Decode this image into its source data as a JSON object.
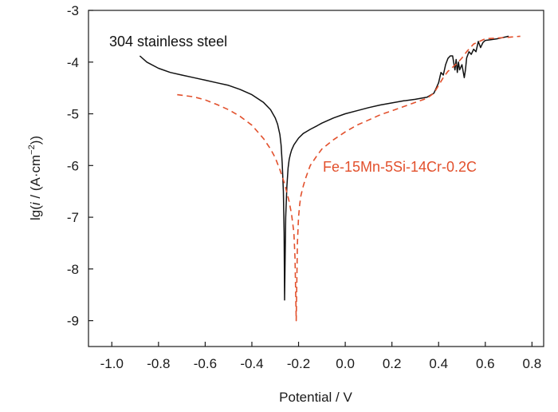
{
  "chart_data": {
    "type": "line",
    "xlabel": "Potential / V",
    "ylabel_parts": {
      "prefix": "lg(",
      "italic": "i",
      "middle": " / (A·cm",
      "superscript": "−2",
      "suffix": "))"
    },
    "xlim": [
      -1.1,
      0.85
    ],
    "ylim": [
      -9.5,
      -3.0
    ],
    "xticks": [
      -1.0,
      -0.8,
      -0.6,
      -0.4,
      -0.2,
      0.0,
      0.2,
      0.4,
      0.6,
      0.8
    ],
    "xtick_labels": [
      "-1.0",
      "-0.8",
      "-0.6",
      "-0.4",
      "-0.2",
      "0.0",
      "0.2",
      "0.4",
      "0.6",
      "0.8"
    ],
    "yticks": [
      -3,
      -4,
      -5,
      -6,
      -7,
      -8,
      -9
    ],
    "ytick_labels": [
      "-3",
      "-4",
      "-5",
      "-6",
      "-7",
      "-8",
      "-9"
    ],
    "grid": false,
    "series": [
      {
        "name": "304 stainless steel",
        "color": "#111111",
        "style": "solid",
        "x": [
          -0.88,
          -0.85,
          -0.8,
          -0.75,
          -0.7,
          -0.65,
          -0.6,
          -0.55,
          -0.5,
          -0.45,
          -0.4,
          -0.35,
          -0.32,
          -0.3,
          -0.29,
          -0.28,
          -0.275,
          -0.27,
          -0.265,
          -0.262,
          -0.26,
          -0.255,
          -0.25,
          -0.245,
          -0.24,
          -0.235,
          -0.23,
          -0.22,
          -0.2,
          -0.18,
          -0.15,
          -0.12,
          -0.1,
          -0.05,
          0.0,
          0.05,
          0.1,
          0.15,
          0.2,
          0.25,
          0.3,
          0.35,
          0.38,
          0.39,
          0.4,
          0.41,
          0.42,
          0.43,
          0.44,
          0.45,
          0.46,
          0.47,
          0.475,
          0.48,
          0.485,
          0.49,
          0.5,
          0.51,
          0.515,
          0.52,
          0.53,
          0.54,
          0.55,
          0.56,
          0.57,
          0.58,
          0.59,
          0.6,
          0.62,
          0.65,
          0.7
        ],
        "y": [
          -3.88,
          -4.0,
          -4.12,
          -4.2,
          -4.25,
          -4.3,
          -4.35,
          -4.4,
          -4.45,
          -4.53,
          -4.63,
          -4.78,
          -4.92,
          -5.08,
          -5.2,
          -5.4,
          -5.6,
          -5.95,
          -6.5,
          -7.3,
          -8.6,
          -7.0,
          -6.4,
          -6.05,
          -5.88,
          -5.78,
          -5.7,
          -5.6,
          -5.47,
          -5.38,
          -5.3,
          -5.23,
          -5.18,
          -5.08,
          -5.0,
          -4.94,
          -4.88,
          -4.83,
          -4.79,
          -4.75,
          -4.72,
          -4.68,
          -4.6,
          -4.5,
          -4.4,
          -4.2,
          -4.25,
          -4.05,
          -3.93,
          -3.88,
          -3.88,
          -4.15,
          -3.95,
          -4.2,
          -4.0,
          -4.15,
          -4.05,
          -4.3,
          -4.15,
          -3.92,
          -3.8,
          -3.85,
          -3.75,
          -3.8,
          -3.6,
          -3.72,
          -3.62,
          -3.58,
          -3.57,
          -3.55,
          -3.5
        ]
      },
      {
        "name": "Fe-15Mn-5Si-14Cr-0.2C",
        "color": "#e2502c",
        "style": "dashed",
        "x": [
          -0.72,
          -0.65,
          -0.6,
          -0.55,
          -0.5,
          -0.45,
          -0.4,
          -0.35,
          -0.32,
          -0.3,
          -0.28,
          -0.26,
          -0.24,
          -0.23,
          -0.22,
          -0.215,
          -0.21,
          -0.205,
          -0.2,
          -0.195,
          -0.19,
          -0.18,
          -0.17,
          -0.16,
          -0.15,
          -0.12,
          -0.1,
          -0.05,
          0.0,
          0.05,
          0.1,
          0.15,
          0.2,
          0.25,
          0.3,
          0.35,
          0.38,
          0.4,
          0.42,
          0.44,
          0.46,
          0.48,
          0.5,
          0.52,
          0.55,
          0.6,
          0.7,
          0.75
        ],
        "y": [
          -4.63,
          -4.67,
          -4.73,
          -4.82,
          -4.92,
          -5.05,
          -5.22,
          -5.48,
          -5.68,
          -5.85,
          -6.08,
          -6.35,
          -6.7,
          -6.95,
          -7.3,
          -7.8,
          -9.0,
          -7.5,
          -7.0,
          -6.75,
          -6.58,
          -6.4,
          -6.25,
          -6.12,
          -6.0,
          -5.8,
          -5.68,
          -5.5,
          -5.35,
          -5.22,
          -5.12,
          -5.02,
          -4.94,
          -4.86,
          -4.78,
          -4.7,
          -4.6,
          -4.45,
          -4.3,
          -4.18,
          -4.1,
          -4.02,
          -3.92,
          -3.8,
          -3.65,
          -3.55,
          -3.52,
          -3.5
        ]
      }
    ]
  }
}
